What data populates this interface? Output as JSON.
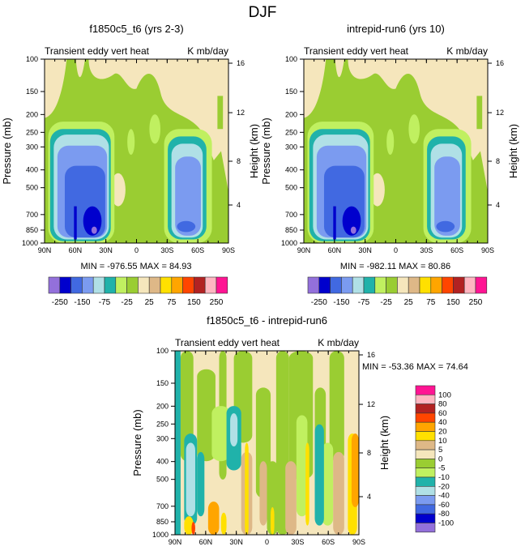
{
  "title": "DJF",
  "chart_data": [
    {
      "type": "heatmap",
      "subtype": "filled-contour",
      "title": "f1850c5_t6 (yrs 2-3)",
      "left_string": "Transient eddy vert heat",
      "right_string": "K mb/day",
      "xlabel": "",
      "ylabel": "Pressure (mb)",
      "ylabel_right": "Height (km)",
      "x_ticks": [
        "90N",
        "60N",
        "30N",
        "0",
        "30S",
        "60S",
        "90S"
      ],
      "y_ticks": [
        "100",
        "150",
        "200",
        "250",
        "300",
        "400",
        "500",
        "700",
        "850",
        "1000"
      ],
      "y_right_ticks": [
        "4",
        "8",
        "12",
        "16"
      ],
      "stats": "MIN = -976.55  MAX =  84.93",
      "min": -976.55,
      "max": 84.93
    },
    {
      "type": "heatmap",
      "subtype": "filled-contour",
      "title": "intrepid-run6 (yrs 10)",
      "left_string": "Transient eddy vert heat",
      "right_string": "K mb/day",
      "xlabel": "",
      "ylabel": "Pressure (mb)",
      "ylabel_right": "Height (km)",
      "x_ticks": [
        "90N",
        "60N",
        "30N",
        "0",
        "30S",
        "60S",
        "90S"
      ],
      "y_ticks": [
        "100",
        "150",
        "200",
        "250",
        "300",
        "400",
        "500",
        "700",
        "850",
        "1000"
      ],
      "y_right_ticks": [
        "4",
        "8",
        "12",
        "16"
      ],
      "stats": "MIN = -982.11  MAX = 80.86",
      "min": -982.11,
      "max": 80.86
    },
    {
      "type": "heatmap",
      "subtype": "filled-contour",
      "title": "f1850c5_t6 - intrepid-run6",
      "left_string": "Transient eddy vert heat",
      "right_string": "K mb/day",
      "xlabel": "",
      "ylabel": "Pressure (mb)",
      "ylabel_right": "Height (km)",
      "x_ticks": [
        "90N",
        "60N",
        "30N",
        "0",
        "30S",
        "60S",
        "90S"
      ],
      "y_ticks": [
        "100",
        "150",
        "200",
        "250",
        "300",
        "400",
        "500",
        "700",
        "850",
        "1000"
      ],
      "y_right_ticks": [
        "4",
        "8",
        "12",
        "16"
      ],
      "stats": "MIN = -53.36  MAX =  74.64",
      "min": -53.36,
      "max": 74.64
    }
  ],
  "colorbar_top": {
    "colors": [
      "#9370DB",
      "#0000CD",
      "#4169E1",
      "#7B9BF0",
      "#B0E0E6",
      "#20B2AA",
      "#C0F060",
      "#9ACD32",
      "#F5E6BC",
      "#DEB887",
      "#FFE000",
      "#FFA500",
      "#FF4500",
      "#B22222",
      "#FFB6C1",
      "#FF1493"
    ],
    "labels": [
      "-250",
      "-150",
      "-75",
      "-25",
      "25",
      "75",
      "150",
      "250"
    ]
  },
  "colorbar_diff": {
    "colors": [
      "#FF1493",
      "#FFB6C1",
      "#B22222",
      "#FF4500",
      "#FFA500",
      "#FFE000",
      "#DEB887",
      "#F5E6BC",
      "#9ACD32",
      "#C0F060",
      "#20B2AA",
      "#B0E0E6",
      "#7B9BF0",
      "#4169E1",
      "#0000CD",
      "#9370DB"
    ],
    "labels": [
      "100",
      "80",
      "60",
      "40",
      "20",
      "10",
      "5",
      "0",
      "-5",
      "-10",
      "-20",
      "-40",
      "-60",
      "-80",
      "-100"
    ]
  }
}
